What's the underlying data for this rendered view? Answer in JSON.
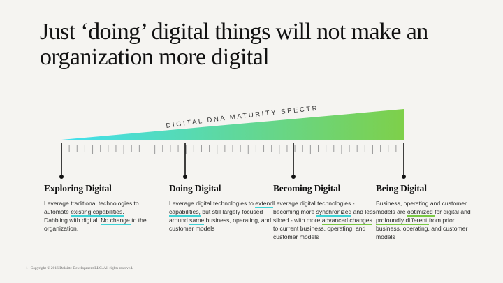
{
  "title": "Just ‘doing’ digital things will not make an organization more digital",
  "spectrum": {
    "label": "DIGITAL DNA MATURITY SPECTRUM",
    "start_color": "#40e0f0",
    "end_color": "#7ed04a",
    "highlight_cyan": "#3fd3d6",
    "highlight_green": "#7ac943"
  },
  "stages": [
    {
      "title": "Exploring Digital",
      "desc": [
        {
          "t": "Leverage traditional technologies to automate "
        },
        {
          "t": "existing capabilities.",
          "hl": "cyan"
        },
        {
          "t": " Dabbling with digital. "
        },
        {
          "t": "No change ",
          "hl": "cyan"
        },
        {
          "t": "to the organization."
        }
      ]
    },
    {
      "title": "Doing Digital",
      "desc": [
        {
          "t": "Leverage digital technologies to "
        },
        {
          "t": "extend capabilities,",
          "hl": "cyan"
        },
        {
          "t": " but still largely focused around "
        },
        {
          "t": "same",
          "hl": "cyan"
        },
        {
          "t": " business, operating, and customer models"
        }
      ]
    },
    {
      "title": "Becoming Digital",
      "desc": [
        {
          "t": "Leverage digital technologies - becoming more "
        },
        {
          "t": "synchronized",
          "hl": "cyan"
        },
        {
          "t": " and less siloed - with more "
        },
        {
          "t": "advanced changes ",
          "hl": "green"
        },
        {
          "t": "to current business, operating, and customer models"
        }
      ]
    },
    {
      "title": "Being Digital",
      "desc": [
        {
          "t": "Business, operating and customer models are "
        },
        {
          "t": "optimized ",
          "hl": "green"
        },
        {
          "t": "for digital and "
        },
        {
          "t": "profoundly different ",
          "hl": "green"
        },
        {
          "t": "from prior business, operating, and customer models"
        }
      ]
    }
  ],
  "footer": "1  |  Copyright © 2016 Deloitte Development LLC. All rights reserved."
}
